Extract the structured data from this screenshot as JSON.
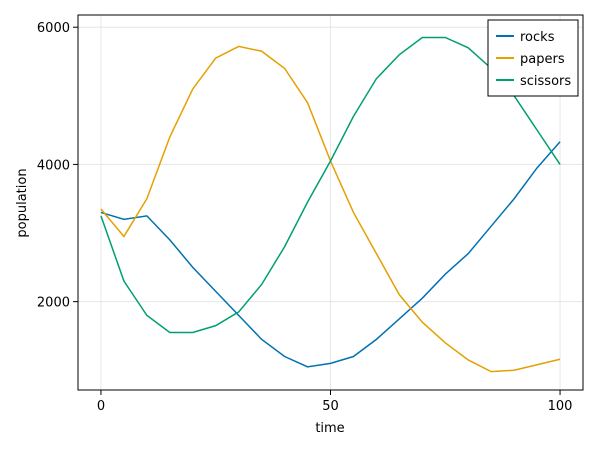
{
  "chart_data": {
    "type": "line",
    "x_label": "time",
    "y_label": "population",
    "x": [
      0,
      5,
      10,
      15,
      20,
      25,
      30,
      35,
      40,
      45,
      50,
      55,
      60,
      65,
      70,
      75,
      80,
      85,
      90,
      95,
      100
    ],
    "series": [
      {
        "name": "rocks",
        "color": "#0072b2",
        "values": [
          3300,
          3200,
          3250,
          2900,
          2500,
          2150,
          1800,
          1450,
          1200,
          1050,
          1100,
          1200,
          1450,
          1750,
          2050,
          2400,
          2700,
          3100,
          3500,
          3950,
          4330
        ]
      },
      {
        "name": "papers",
        "color": "#e69f00",
        "values": [
          3350,
          2950,
          3500,
          4400,
          5100,
          5550,
          5720,
          5650,
          5400,
          4900,
          4050,
          3300,
          2700,
          2100,
          1700,
          1400,
          1150,
          980,
          1000,
          1080,
          1160
        ]
      },
      {
        "name": "scissors",
        "color": "#009e73",
        "values": [
          3250,
          2300,
          1800,
          1550,
          1550,
          1650,
          1850,
          2250,
          2800,
          3450,
          4050,
          4700,
          5250,
          5600,
          5850,
          5850,
          5700,
          5400,
          5000,
          4500,
          4000
        ]
      }
    ],
    "xlim": [
      -5,
      105
    ],
    "ylim": [
      712,
      6178
    ],
    "xticks": [
      0,
      50,
      100
    ],
    "yticks": [
      2000,
      4000,
      6000
    ],
    "grid": true,
    "legend": "top-right"
  }
}
